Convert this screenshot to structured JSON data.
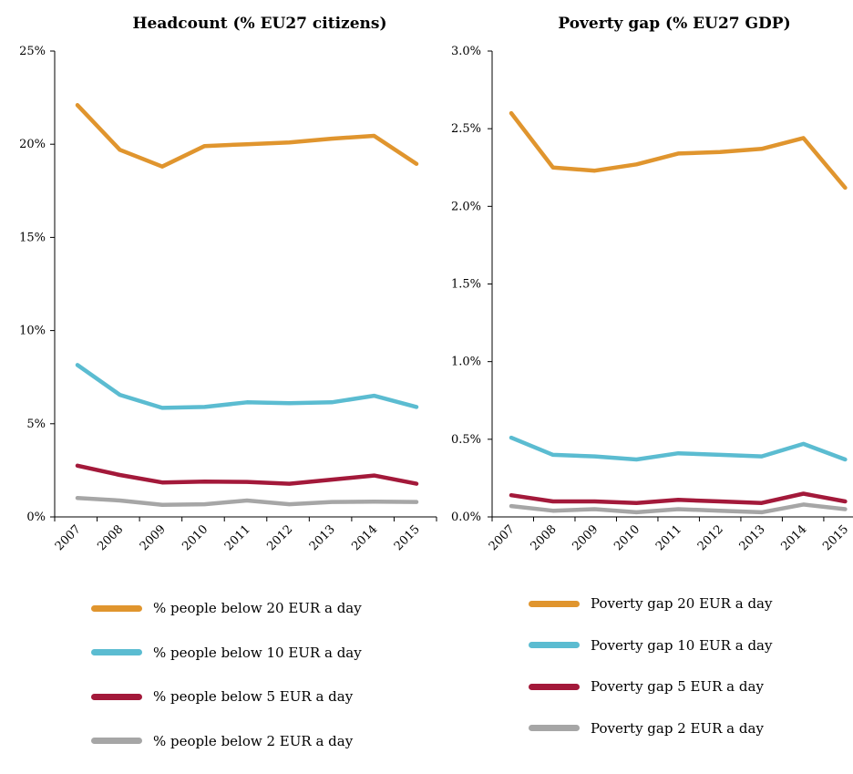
{
  "chart_data": [
    {
      "type": "line",
      "title": "Headcount (% EU27 citizens)",
      "x": [
        "2007",
        "2008",
        "2009",
        "2010",
        "2011",
        "2012",
        "2013",
        "2014",
        "2015"
      ],
      "y_ticks": [
        "0%",
        "5%",
        "10%",
        "15%",
        "20%",
        "25%"
      ],
      "ylim": [
        0,
        25
      ],
      "grid": false,
      "legend_position": "bottom",
      "series": [
        {
          "name": "% people below 20 EUR a day",
          "color": "#E0952E",
          "values": [
            22.1,
            19.7,
            18.8,
            19.9,
            20.0,
            20.1,
            20.3,
            20.45,
            18.95
          ]
        },
        {
          "name": "% people below 10 EUR a day",
          "color": "#5BBCD1",
          "values": [
            8.15,
            6.55,
            5.85,
            5.9,
            6.15,
            6.1,
            6.15,
            6.5,
            5.9
          ]
        },
        {
          "name": "% people below 5 EUR a day",
          "color": "#A3193A",
          "values": [
            2.75,
            2.25,
            1.85,
            1.9,
            1.88,
            1.78,
            2.0,
            2.22,
            1.78
          ]
        },
        {
          "name": "% people below 2 EUR a day",
          "color": "#A6A6A6",
          "values": [
            1.02,
            0.88,
            0.65,
            0.68,
            0.88,
            0.68,
            0.8,
            0.82,
            0.8
          ]
        }
      ]
    },
    {
      "type": "line",
      "title": "Poverty gap (% EU27 GDP)",
      "x": [
        "2007",
        "2008",
        "2009",
        "2010",
        "2011",
        "2012",
        "2013",
        "2014",
        "2015"
      ],
      "y_ticks": [
        "0.0%",
        "0.5%",
        "1.0%",
        "1.5%",
        "2.0%",
        "2.5%",
        "3.0%"
      ],
      "ylim": [
        0,
        3.0
      ],
      "grid": false,
      "legend_position": "bottom",
      "series": [
        {
          "name": "Poverty gap 20 EUR a day",
          "color": "#E0952E",
          "values": [
            2.6,
            2.25,
            2.23,
            2.27,
            2.34,
            2.35,
            2.37,
            2.44,
            2.12
          ]
        },
        {
          "name": "Poverty gap 10 EUR a day",
          "color": "#5BBCD1",
          "values": [
            0.51,
            0.4,
            0.39,
            0.37,
            0.41,
            0.4,
            0.39,
            0.47,
            0.37
          ]
        },
        {
          "name": "Poverty gap 5 EUR a day",
          "color": "#A3193A",
          "values": [
            0.14,
            0.1,
            0.1,
            0.09,
            0.11,
            0.1,
            0.09,
            0.15,
            0.1
          ]
        },
        {
          "name": "Poverty gap 2 EUR a day",
          "color": "#A6A6A6",
          "values": [
            0.07,
            0.04,
            0.05,
            0.03,
            0.05,
            0.04,
            0.03,
            0.08,
            0.05
          ]
        }
      ]
    }
  ]
}
